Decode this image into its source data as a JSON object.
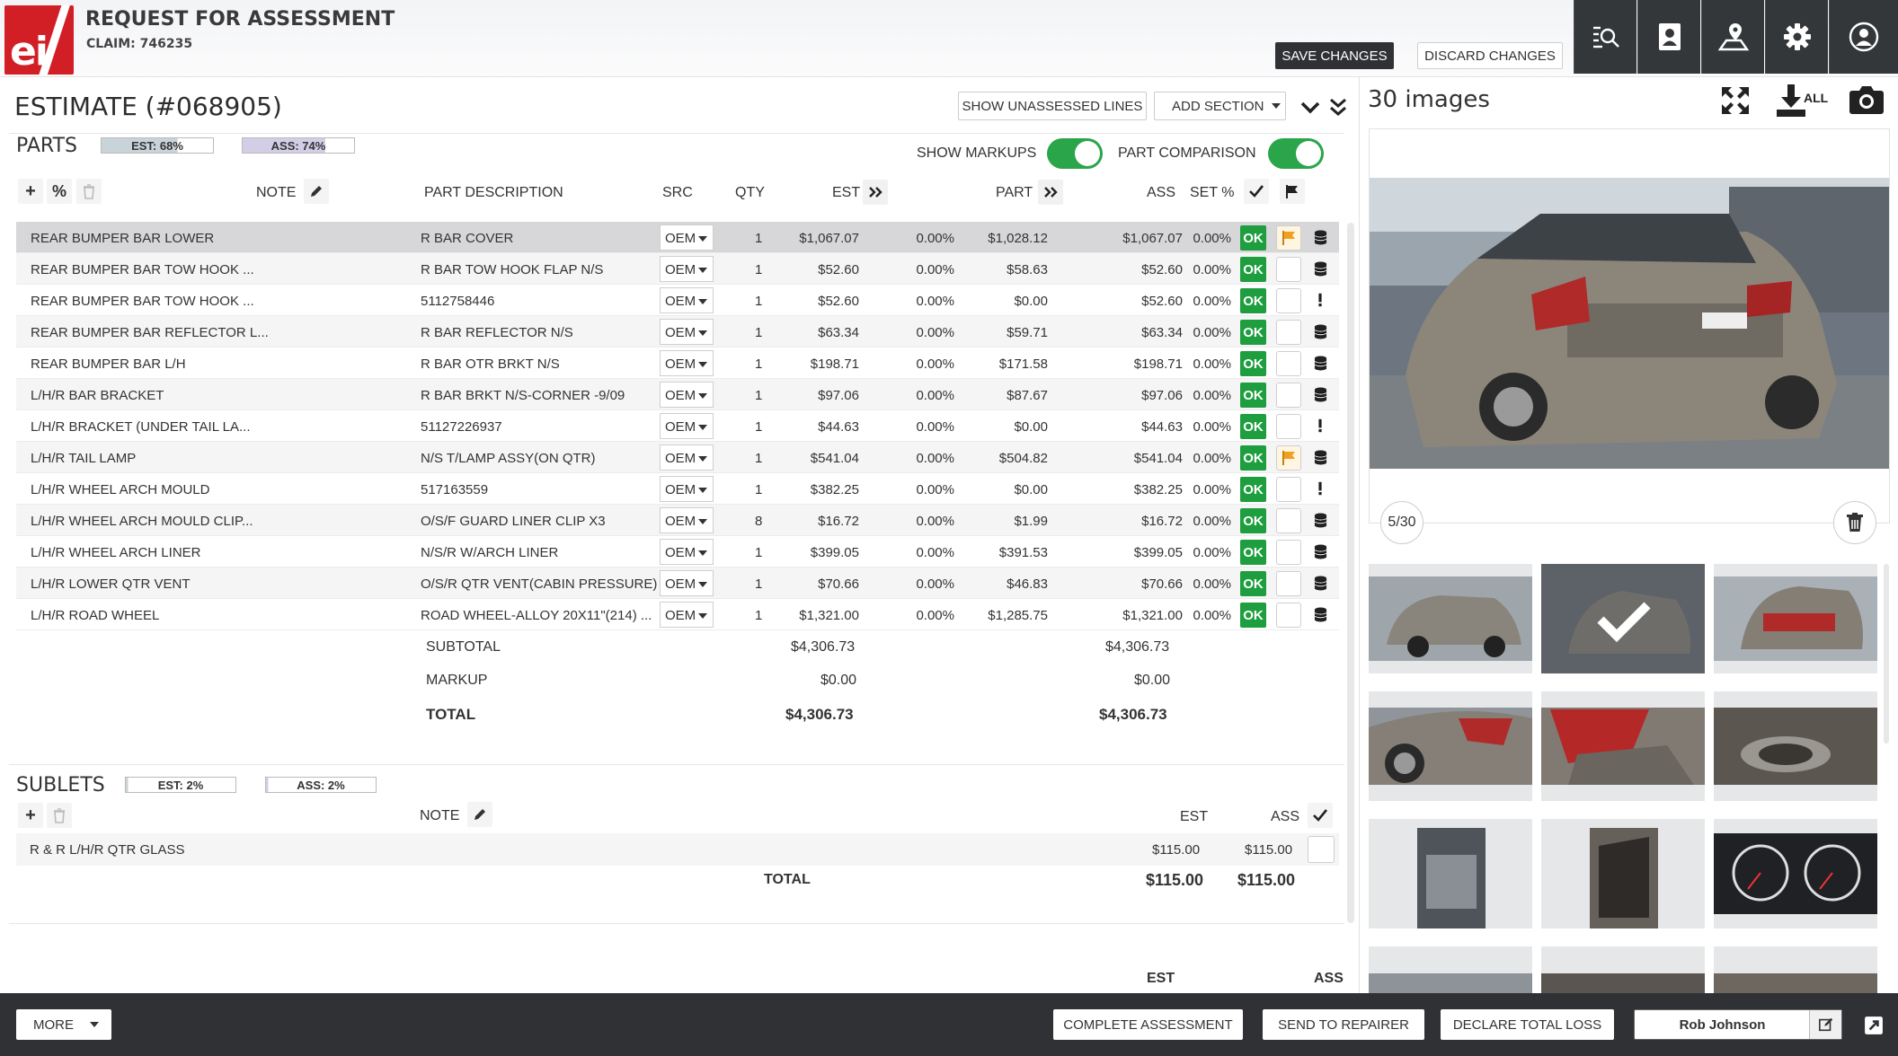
{
  "header": {
    "logo_text": "ei",
    "title": "REQUEST FOR ASSESSMENT",
    "claim": "CLAIM: 746235",
    "save_label": "SAVE CHANGES",
    "discard_label": "DISCARD CHANGES",
    "tools": [
      "search-document-icon",
      "contact-card-icon",
      "map-location-icon",
      "gear-icon",
      "user-icon"
    ]
  },
  "estimate": {
    "title": "ESTIMATE (#068905)",
    "show_unassessed": "SHOW UNASSESSED LINES",
    "add_section": "ADD SECTION"
  },
  "parts": {
    "title": "PARTS",
    "est_badge": "EST: 68%",
    "ass_badge": "ASS: 74%",
    "show_markups": "SHOW MARKUPS",
    "part_comparison": "PART COMPARISON",
    "columns": {
      "note": "NOTE",
      "desc": "PART DESCRIPTION",
      "src": "SRC",
      "qty": "QTY",
      "est": "EST",
      "part": "PART",
      "ass": "ASS",
      "set": "SET %"
    },
    "rows": [
      {
        "name": "REAR BUMPER BAR LOWER",
        "desc": "R BAR COVER",
        "src": "OEM",
        "qty": "1",
        "est": "$1,067.07",
        "est_pct": "0.00%",
        "part": "$1,028.12",
        "ass": "$1,067.07",
        "ass_pct": "0.00%",
        "ok": "OK",
        "flag": true,
        "end": "db"
      },
      {
        "name": "REAR BUMPER BAR TOW HOOK ...",
        "desc": "R BAR TOW HOOK FLAP N/S",
        "src": "OEM",
        "qty": "1",
        "est": "$52.60",
        "est_pct": "0.00%",
        "part": "$58.63",
        "ass": "$52.60",
        "ass_pct": "0.00%",
        "ok": "OK",
        "flag": false,
        "end": "db"
      },
      {
        "name": "REAR BUMPER BAR TOW HOOK ...",
        "desc": "5112758446",
        "src": "OEM",
        "qty": "1",
        "est": "$52.60",
        "est_pct": "0.00%",
        "part": "$0.00",
        "ass": "$52.60",
        "ass_pct": "0.00%",
        "ok": "OK",
        "flag": false,
        "end": "!"
      },
      {
        "name": "REAR BUMPER BAR REFLECTOR L...",
        "desc": "R BAR REFLECTOR N/S",
        "src": "OEM",
        "qty": "1",
        "est": "$63.34",
        "est_pct": "0.00%",
        "part": "$59.71",
        "ass": "$63.34",
        "ass_pct": "0.00%",
        "ok": "OK",
        "flag": false,
        "end": "db"
      },
      {
        "name": "REAR BUMPER BAR L/H",
        "desc": "R BAR OTR BRKT N/S",
        "src": "OEM",
        "qty": "1",
        "est": "$198.71",
        "est_pct": "0.00%",
        "part": "$171.58",
        "ass": "$198.71",
        "ass_pct": "0.00%",
        "ok": "OK",
        "flag": false,
        "end": "db"
      },
      {
        "name": "L/H/R BAR BRACKET",
        "desc": "R BAR BRKT N/S-CORNER -9/09",
        "src": "OEM",
        "qty": "1",
        "est": "$97.06",
        "est_pct": "0.00%",
        "part": "$87.67",
        "ass": "$97.06",
        "ass_pct": "0.00%",
        "ok": "OK",
        "flag": false,
        "end": "db"
      },
      {
        "name": "L/H/R BRACKET (UNDER TAIL LA...",
        "desc": "51127226937",
        "src": "OEM",
        "qty": "1",
        "est": "$44.63",
        "est_pct": "0.00%",
        "part": "$0.00",
        "ass": "$44.63",
        "ass_pct": "0.00%",
        "ok": "OK",
        "flag": false,
        "end": "!"
      },
      {
        "name": "L/H/R TAIL LAMP",
        "desc": "N/S T/LAMP ASSY(ON QTR)",
        "src": "OEM",
        "qty": "1",
        "est": "$541.04",
        "est_pct": "0.00%",
        "part": "$504.82",
        "ass": "$541.04",
        "ass_pct": "0.00%",
        "ok": "OK",
        "flag": true,
        "end": "db"
      },
      {
        "name": "L/H/R WHEEL ARCH MOULD",
        "desc": "517163559",
        "src": "OEM",
        "qty": "1",
        "est": "$382.25",
        "est_pct": "0.00%",
        "part": "$0.00",
        "ass": "$382.25",
        "ass_pct": "0.00%",
        "ok": "OK",
        "flag": false,
        "end": "!"
      },
      {
        "name": "L/H/R WHEEL ARCH MOULD CLIP...",
        "desc": "O/S/F GUARD LINER CLIP X3",
        "src": "OEM",
        "qty": "8",
        "est": "$16.72",
        "est_pct": "0.00%",
        "part": "$1.99",
        "ass": "$16.72",
        "ass_pct": "0.00%",
        "ok": "OK",
        "flag": false,
        "end": "db"
      },
      {
        "name": "L/H/R WHEEL ARCH LINER",
        "desc": "N/S/R W/ARCH LINER",
        "src": "OEM",
        "qty": "1",
        "est": "$399.05",
        "est_pct": "0.00%",
        "part": "$391.53",
        "ass": "$399.05",
        "ass_pct": "0.00%",
        "ok": "OK",
        "flag": false,
        "end": "db"
      },
      {
        "name": "L/H/R LOWER QTR VENT",
        "desc": "O/S/R QTR VENT(CABIN PRESSURE)",
        "src": "OEM",
        "qty": "1",
        "est": "$70.66",
        "est_pct": "0.00%",
        "part": "$46.83",
        "ass": "$70.66",
        "ass_pct": "0.00%",
        "ok": "OK",
        "flag": false,
        "end": "db"
      },
      {
        "name": "L/H/R ROAD WHEEL",
        "desc": "ROAD WHEEL-ALLOY 20X11\"(214) ...",
        "src": "OEM",
        "qty": "1",
        "est": "$1,321.00",
        "est_pct": "0.00%",
        "part": "$1,285.75",
        "ass": "$1,321.00",
        "ass_pct": "0.00%",
        "ok": "OK",
        "flag": false,
        "end": "db"
      }
    ],
    "subtotal_label": "SUBTOTAL",
    "subtotal_est": "$4,306.73",
    "subtotal_ass": "$4,306.73",
    "markup_label": "MARKUP",
    "markup_est": "$0.00",
    "markup_ass": "$0.00",
    "total_label": "TOTAL",
    "total_est": "$4,306.73",
    "total_ass": "$4,306.73"
  },
  "sublets": {
    "title": "SUBLETS",
    "est_badge": "EST: 2%",
    "ass_badge": "ASS: 2%",
    "note": "NOTE",
    "est": "EST",
    "ass": "ASS",
    "row": {
      "name": "R & R L/H/R QTR GLASS",
      "est": "$115.00",
      "ass": "$115.00"
    },
    "total_label": "TOTAL",
    "total_est": "$115.00",
    "total_ass": "$115.00",
    "next_est": "EST",
    "next_ass": "ASS"
  },
  "images": {
    "count_label": "30 images",
    "download_all": "ALL",
    "pager": "5/30"
  },
  "footer": {
    "more": "MORE",
    "complete": "COMPLETE ASSESSMENT",
    "send": "SEND TO REPAIRER",
    "declare": "DECLARE TOTAL LOSS",
    "user": "Rob Johnson"
  },
  "colors": {
    "ok_green": "#1e9e3e",
    "toggle_green": "#2aa54a",
    "dark": "#2f3134",
    "logo_red": "#d21f26",
    "flag_orange": "#f0a020"
  }
}
